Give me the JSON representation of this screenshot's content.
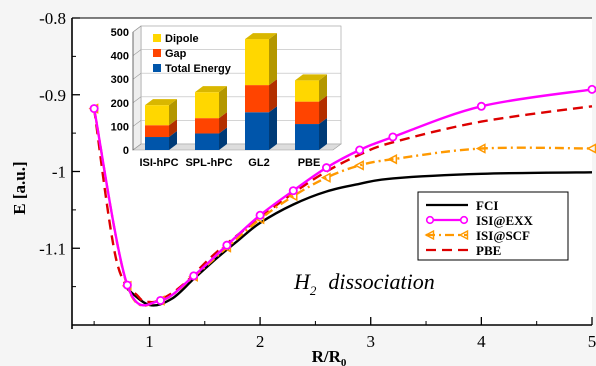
{
  "chart_data": [
    {
      "type": "line",
      "xlabel": "R/R",
      "xlabel_sub": "0",
      "ylabel": "E [a.u.]",
      "xlim": [
        0.3,
        5
      ],
      "ylim": [
        -1.2,
        -0.8
      ],
      "xticks": [
        1,
        2,
        3,
        4,
        5
      ],
      "yticks": [
        -0.8,
        -0.9,
        -1,
        -1.1
      ],
      "ytick_labels": [
        "-0.8",
        "-0.9",
        "-1",
        "-1.1"
      ],
      "annotation": {
        "main": "H",
        "sub": "2",
        "rest": "dissociation"
      },
      "legend_position": "lower-right",
      "series": [
        {
          "name": "FCI",
          "color": "#000000",
          "style": "solid",
          "marker": "none",
          "x": [
            0.8,
            1.0,
            1.2,
            1.4,
            1.6,
            1.8,
            2.0,
            2.3,
            2.6,
            2.9,
            3.2,
            4.0,
            5.0
          ],
          "y": [
            -1.153,
            -1.174,
            -1.166,
            -1.14,
            -1.114,
            -1.09,
            -1.067,
            -1.043,
            -1.026,
            -1.016,
            -1.009,
            -1.003,
            -1.001
          ]
        },
        {
          "name": "ISI@EXX",
          "color": "#ff00ff",
          "style": "solid",
          "marker": "circle",
          "x": [
            0.5,
            0.8,
            1.1,
            1.4,
            1.7,
            2.0,
            2.3,
            2.6,
            2.9,
            3.2,
            4.0,
            5.0
          ],
          "y": [
            -0.918,
            -1.148,
            -1.168,
            -1.136,
            -1.096,
            -1.057,
            -1.025,
            -0.995,
            -0.972,
            -0.955,
            -0.915,
            -0.893
          ]
        },
        {
          "name": "ISI@SCF",
          "color": "#ff9900",
          "style": "dash-dot",
          "marker": "triangle-left",
          "x": [
            0.5,
            0.8,
            1.1,
            1.4,
            1.7,
            2.0,
            2.3,
            2.6,
            2.9,
            3.2,
            4.0,
            5.0
          ],
          "y": [
            -0.918,
            -1.149,
            -1.168,
            -1.137,
            -1.099,
            -1.062,
            -1.032,
            -1.008,
            -0.992,
            -0.984,
            -0.97,
            -0.97
          ]
        },
        {
          "name": "PBE",
          "color": "#dd0000",
          "style": "dashed",
          "marker": "none",
          "x": [
            0.5,
            0.7,
            0.9,
            1.0,
            1.1,
            1.3,
            1.6,
            2.0,
            2.3,
            2.6,
            2.9,
            3.2,
            4.0,
            5.0
          ],
          "y": [
            -0.918,
            -1.115,
            -1.163,
            -1.17,
            -1.167,
            -1.148,
            -1.106,
            -1.06,
            -1.028,
            -1.0,
            -0.978,
            -0.962,
            -0.935,
            -0.915
          ]
        }
      ]
    },
    {
      "type": "bar",
      "stacked": true,
      "categories": [
        "ISI-hPC",
        "SPL-hPC",
        "GL2",
        "PBE"
      ],
      "ylim": [
        0,
        500
      ],
      "yticks": [
        0,
        100,
        200,
        300,
        400,
        500
      ],
      "ytick_labels": [
        "0",
        "100",
        "200",
        "300",
        "400",
        "500"
      ],
      "legend_position": "top-left",
      "series": [
        {
          "name": "Total Energy",
          "color": "#0055aa",
          "values": [
            55,
            70,
            160,
            110
          ]
        },
        {
          "name": "Gap",
          "color": "#ff4400",
          "values": [
            50,
            65,
            115,
            95
          ]
        },
        {
          "name": "Dipole",
          "color": "#ffd700",
          "values": [
            85,
            110,
            195,
            90
          ]
        }
      ]
    }
  ]
}
